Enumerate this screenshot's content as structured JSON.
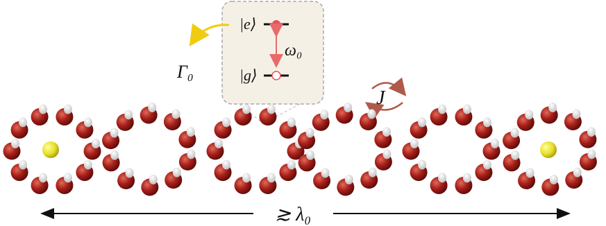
{
  "inset": {
    "excited_state": "|e⟩",
    "ground_state": "|g⟩",
    "transition_frequency": "ω₀"
  },
  "decay_rate": "Γ₀",
  "coupling": "J",
  "length_scale": "≳ λ₀"
}
